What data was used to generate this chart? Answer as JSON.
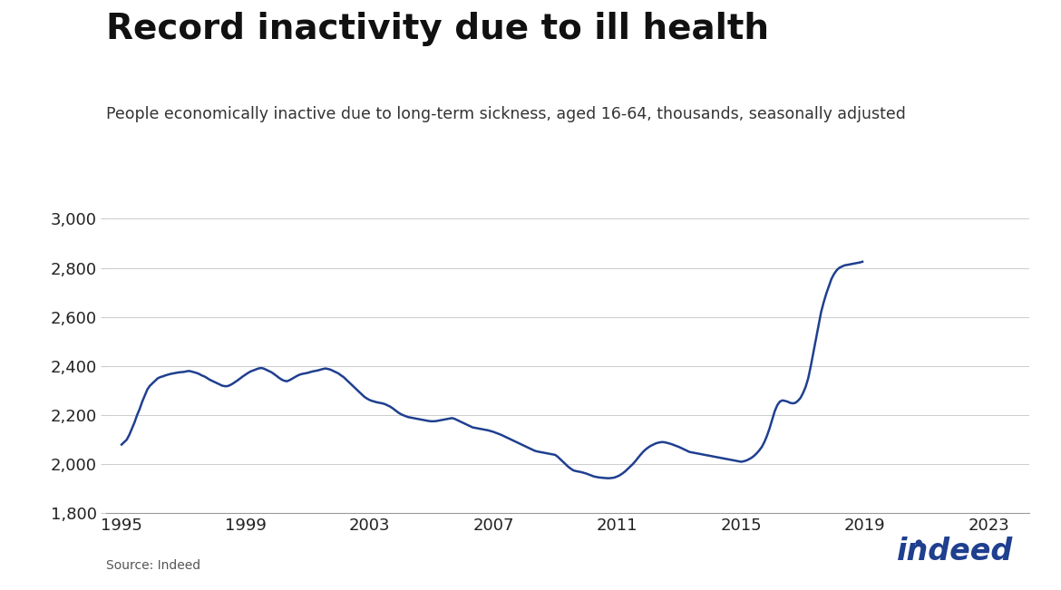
{
  "title": "Record inactivity due to ill health",
  "subtitle": "People economically inactive due to long-term sickness, aged 16-64, thousands, seasonally adjusted",
  "source": "Source: Indeed",
  "line_color": "#1f3f8f",
  "line_width": 1.8,
  "background_color": "#ffffff",
  "ylim": [
    1800,
    3050
  ],
  "yticks": [
    1800,
    2000,
    2200,
    2400,
    2600,
    2800,
    3000
  ],
  "xticks_years": [
    1995,
    1999,
    2003,
    2007,
    2011,
    2015,
    2019,
    2023
  ],
  "title_fontsize": 28,
  "subtitle_fontsize": 12.5,
  "tick_fontsize": 13,
  "values": [
    2080,
    2090,
    2100,
    2120,
    2145,
    2170,
    2200,
    2225,
    2255,
    2280,
    2305,
    2320,
    2330,
    2340,
    2350,
    2355,
    2358,
    2362,
    2365,
    2368,
    2370,
    2372,
    2374,
    2375,
    2376,
    2378,
    2380,
    2378,
    2375,
    2372,
    2368,
    2362,
    2358,
    2352,
    2345,
    2340,
    2335,
    2330,
    2325,
    2320,
    2318,
    2318,
    2322,
    2328,
    2335,
    2342,
    2350,
    2358,
    2365,
    2372,
    2378,
    2382,
    2386,
    2390,
    2392,
    2390,
    2385,
    2380,
    2375,
    2368,
    2360,
    2352,
    2345,
    2340,
    2338,
    2342,
    2348,
    2354,
    2360,
    2365,
    2368,
    2370,
    2372,
    2375,
    2378,
    2380,
    2382,
    2385,
    2388,
    2390,
    2388,
    2385,
    2380,
    2375,
    2370,
    2362,
    2355,
    2345,
    2335,
    2325,
    2315,
    2305,
    2295,
    2285,
    2275,
    2268,
    2262,
    2258,
    2255,
    2252,
    2250,
    2248,
    2245,
    2240,
    2235,
    2228,
    2220,
    2212,
    2205,
    2200,
    2196,
    2192,
    2190,
    2188,
    2186,
    2184,
    2182,
    2180,
    2178,
    2176,
    2175,
    2175,
    2176,
    2178,
    2180,
    2182,
    2184,
    2186,
    2188,
    2185,
    2180,
    2175,
    2170,
    2165,
    2160,
    2155,
    2150,
    2148,
    2146,
    2144,
    2142,
    2140,
    2138,
    2135,
    2132,
    2128,
    2124,
    2120,
    2115,
    2110,
    2105,
    2100,
    2095,
    2090,
    2085,
    2080,
    2075,
    2070,
    2065,
    2060,
    2055,
    2052,
    2050,
    2048,
    2046,
    2044,
    2042,
    2040,
    2038,
    2030,
    2020,
    2010,
    2000,
    1990,
    1982,
    1975,
    1972,
    1970,
    1968,
    1965,
    1962,
    1958,
    1954,
    1950,
    1948,
    1946,
    1945,
    1944,
    1943,
    1943,
    1944,
    1946,
    1950,
    1955,
    1962,
    1970,
    1980,
    1990,
    2000,
    2012,
    2025,
    2038,
    2050,
    2060,
    2068,
    2075,
    2080,
    2085,
    2088,
    2090,
    2090,
    2088,
    2085,
    2082,
    2078,
    2074,
    2070,
    2065,
    2060,
    2055,
    2050,
    2048,
    2046,
    2044,
    2042,
    2040,
    2038,
    2036,
    2034,
    2032,
    2030,
    2028,
    2026,
    2024,
    2022,
    2020,
    2018,
    2016,
    2014,
    2012,
    2010,
    2012,
    2015,
    2020,
    2026,
    2034,
    2044,
    2056,
    2070,
    2090,
    2115,
    2145,
    2180,
    2215,
    2240,
    2255,
    2260,
    2258,
    2255,
    2250,
    2248,
    2250,
    2258,
    2270,
    2290,
    2315,
    2350,
    2400,
    2455,
    2510,
    2565,
    2620,
    2660,
    2695,
    2725,
    2755,
    2775,
    2790,
    2800,
    2805,
    2810,
    2812,
    2814,
    2816,
    2818,
    2820,
    2822,
    2825
  ]
}
